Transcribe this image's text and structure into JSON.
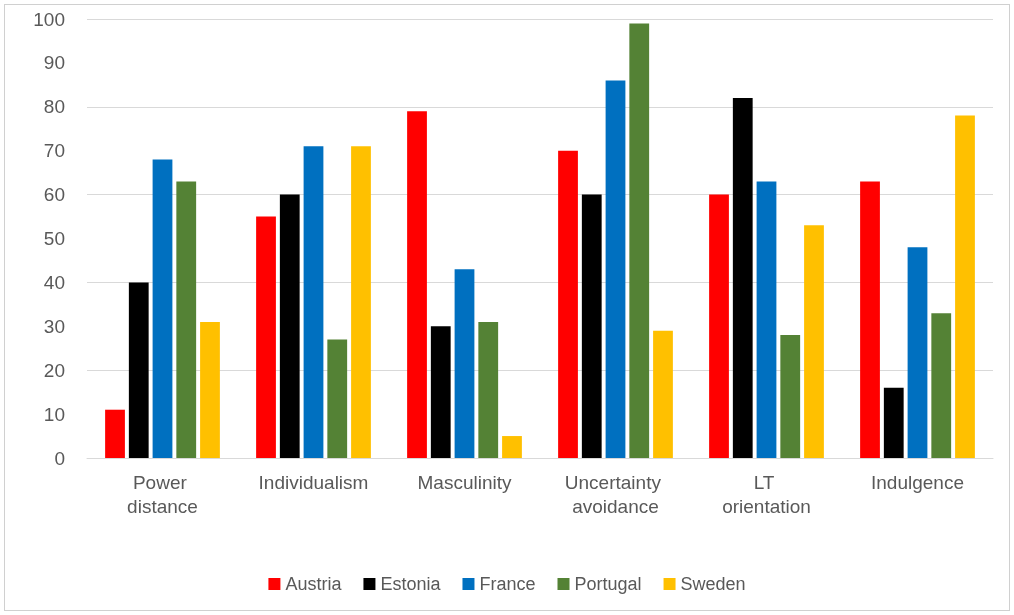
{
  "chart_data": {
    "type": "bar",
    "categories": [
      "Power distance",
      "Individualism",
      "Masculinity",
      "Uncertainty avoidance",
      "LT orientation",
      "Indulgence"
    ],
    "series": [
      {
        "name": "Austria",
        "color": "#ff0000",
        "values": [
          11,
          55,
          79,
          70,
          60,
          63
        ]
      },
      {
        "name": "Estonia",
        "color": "#000000",
        "values": [
          40,
          60,
          30,
          60,
          82,
          16
        ]
      },
      {
        "name": "France",
        "color": "#0070c0",
        "values": [
          68,
          71,
          43,
          86,
          63,
          48
        ]
      },
      {
        "name": "Portugal",
        "color": "#548235",
        "values": [
          63,
          27,
          31,
          99,
          28,
          33
        ]
      },
      {
        "name": "Sweden",
        "color": "#ffc000",
        "values": [
          31,
          71,
          5,
          29,
          53,
          78
        ]
      }
    ],
    "ylim": [
      0,
      100
    ],
    "yticks": [
      0,
      10,
      20,
      30,
      40,
      50,
      60,
      70,
      80,
      90,
      100
    ],
    "grid": "y",
    "legend": "bottom"
  }
}
